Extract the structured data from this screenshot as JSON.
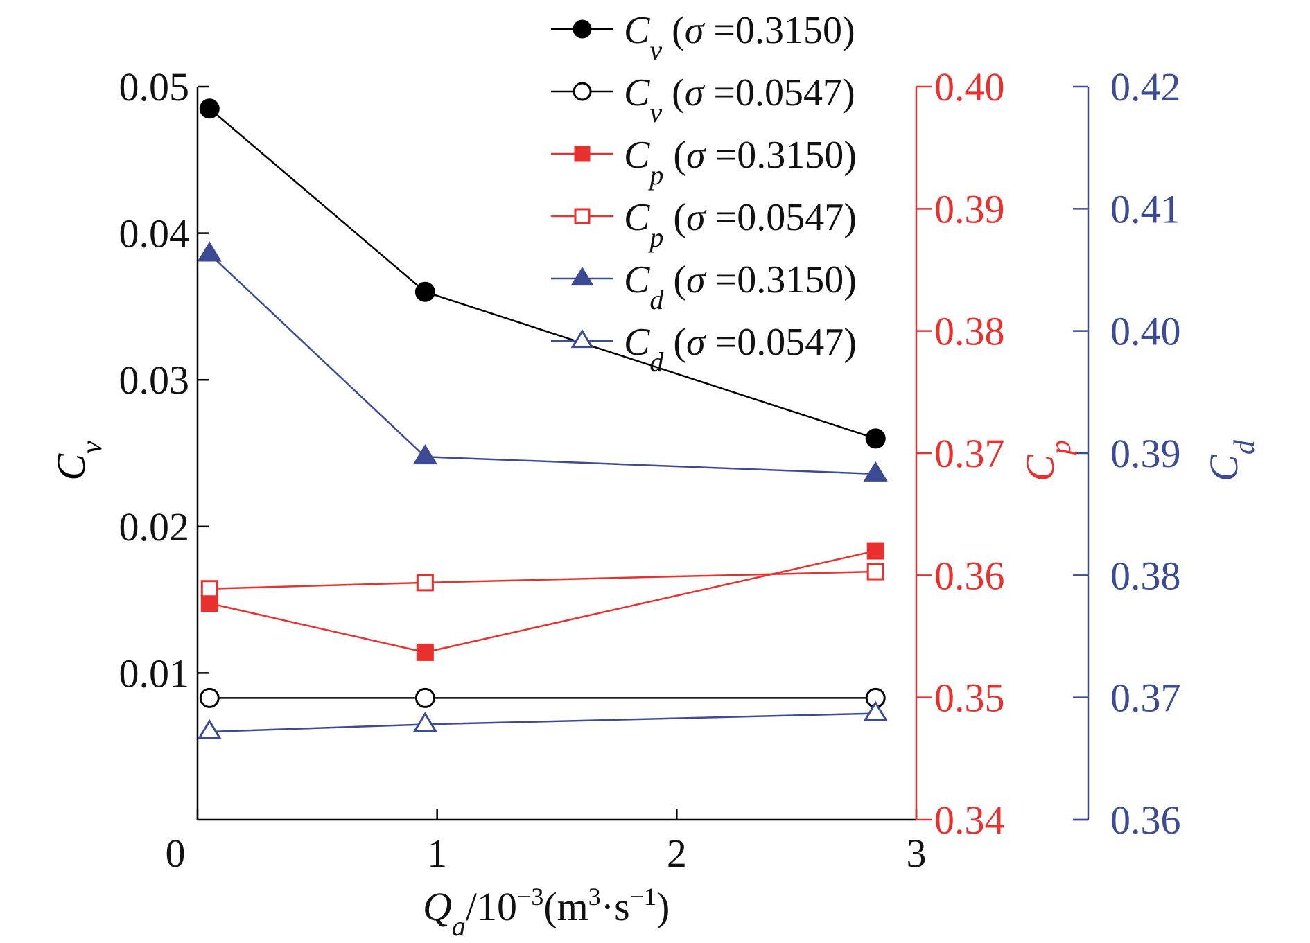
{
  "chart_data": {
    "type": "line",
    "x_axis": {
      "label_var": "Q",
      "label_sub": "a",
      "label_rest": "/10",
      "label_exp": "−3",
      "label_unit_open": "(m",
      "label_unit_exp": "3",
      "label_unit_mid": "·s",
      "label_unit_exp2": "−1",
      "label_unit_close": ")",
      "xlim": [
        0,
        3
      ],
      "ticks": [
        "0",
        "1",
        "2",
        "3"
      ]
    },
    "axes": {
      "cv": {
        "label_var": "C",
        "label_sub": "v",
        "color": "#000000",
        "ylim": [
          0,
          0.05
        ],
        "ticks": [
          {
            "value": 0.01,
            "label": "0.01"
          },
          {
            "value": 0.02,
            "label": "0.02"
          },
          {
            "value": 0.03,
            "label": "0.03"
          },
          {
            "value": 0.04,
            "label": "0.04"
          },
          {
            "value": 0.05,
            "label": "0.05"
          }
        ]
      },
      "cp": {
        "label_var": "C",
        "label_sub": "p",
        "color": "#e8312f",
        "ylim": [
          0.34,
          0.4
        ],
        "ticks": [
          {
            "value": 0.34,
            "label": "0.34"
          },
          {
            "value": 0.35,
            "label": "0.35"
          },
          {
            "value": 0.36,
            "label": "0.36"
          },
          {
            "value": 0.37,
            "label": "0.37"
          },
          {
            "value": 0.38,
            "label": "0.38"
          },
          {
            "value": 0.39,
            "label": "0.39"
          },
          {
            "value": 0.4,
            "label": "0.40"
          }
        ]
      },
      "cd": {
        "label_var": "C",
        "label_sub": "d",
        "color": "#3d4a94",
        "ylim": [
          0.36,
          0.42
        ],
        "ticks": [
          {
            "value": 0.36,
            "label": "0.36"
          },
          {
            "value": 0.37,
            "label": "0.37"
          },
          {
            "value": 0.38,
            "label": "0.38"
          },
          {
            "value": 0.39,
            "label": "0.39"
          },
          {
            "value": 0.4,
            "label": "0.40"
          },
          {
            "value": 0.41,
            "label": "0.41"
          },
          {
            "value": 0.42,
            "label": "0.42"
          }
        ]
      }
    },
    "x": [
      0.05,
      0.95,
      2.83
    ],
    "series": [
      {
        "var": "C",
        "sub": "v",
        "sigma": "0.3150",
        "axis": "cv",
        "color": "#000000",
        "marker": "circle",
        "filled": true,
        "values": [
          0.0485,
          0.036,
          0.026
        ]
      },
      {
        "var": "C",
        "sub": "v",
        "sigma": "0.0547",
        "axis": "cv",
        "color": "#000000",
        "marker": "circle",
        "filled": false,
        "values": [
          0.0083,
          0.0083,
          0.0083
        ]
      },
      {
        "var": "C",
        "sub": "p",
        "sigma": "0.3150",
        "axis": "cp",
        "color": "#e8312f",
        "marker": "square",
        "filled": true,
        "values": [
          0.3577,
          0.3537,
          0.362
        ]
      },
      {
        "var": "C",
        "sub": "p",
        "sigma": "0.0547",
        "axis": "cp",
        "color": "#e8312f",
        "marker": "square",
        "filled": false,
        "values": [
          0.3589,
          0.3594,
          0.3603
        ]
      },
      {
        "var": "C",
        "sub": "d",
        "sigma": "0.3150",
        "axis": "cd",
        "color": "#3d4a94",
        "marker": "triangle",
        "filled": true,
        "values": [
          0.4063,
          0.3897,
          0.3883
        ]
      },
      {
        "var": "C",
        "sub": "d",
        "sigma": "0.0547",
        "axis": "cd",
        "color": "#3d4a94",
        "marker": "triangle",
        "filled": false,
        "values": [
          0.3672,
          0.3678,
          0.3687
        ]
      }
    ],
    "legend": {
      "position": "top-right",
      "sigma_symbol": "σ",
      "eq": " =",
      "open": "(",
      "close": ")"
    },
    "grid": false
  }
}
